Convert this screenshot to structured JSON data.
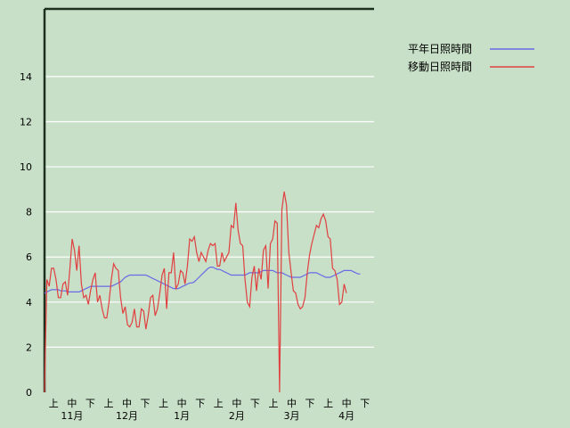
{
  "chart_data": {
    "type": "line",
    "ylim": [
      0,
      17
    ],
    "y_ticks": [
      0,
      2,
      4,
      6,
      8,
      10,
      12,
      14
    ],
    "grid": true,
    "legend_position": "right",
    "x_decade_labels": [
      "上",
      "中",
      "下",
      "上",
      "中",
      "下",
      "上",
      "中",
      "下",
      "上",
      "中",
      "下",
      "上",
      "中",
      "下",
      "上",
      "中",
      "下"
    ],
    "x_month_labels": [
      "11月",
      "12月",
      "1月",
      "2月",
      "3月",
      "4月"
    ],
    "series": [
      {
        "name": "平年日照時間",
        "color": "#6a6ae6",
        "start_index": 0,
        "values": [
          4.4,
          4.45,
          4.5,
          4.55,
          4.55,
          4.55,
          4.55,
          4.5,
          4.5,
          4.5,
          4.45,
          4.45,
          4.45,
          4.45,
          4.45,
          4.45,
          4.5,
          4.55,
          4.6,
          4.65,
          4.7,
          4.7,
          4.7,
          4.7,
          4.7,
          4.7,
          4.7,
          4.7,
          4.7,
          4.7,
          4.75,
          4.8,
          4.85,
          4.9,
          5.0,
          5.1,
          5.15,
          5.2,
          5.2,
          5.2,
          5.2,
          5.2,
          5.2,
          5.2,
          5.2,
          5.15,
          5.1,
          5.05,
          5.0,
          4.95,
          4.9,
          4.85,
          4.8,
          4.75,
          4.7,
          4.65,
          4.6,
          4.6,
          4.6,
          4.65,
          4.7,
          4.75,
          4.8,
          4.85,
          4.85,
          4.9,
          5.0,
          5.1,
          5.2,
          5.3,
          5.4,
          5.5,
          5.55,
          5.55,
          5.5,
          5.45,
          5.45,
          5.4,
          5.35,
          5.3,
          5.25,
          5.2,
          5.2,
          5.2,
          5.2,
          5.2,
          5.2,
          5.2,
          5.25,
          5.3,
          5.3,
          5.3,
          5.3,
          5.3,
          5.35,
          5.4,
          5.4,
          5.4,
          5.4,
          5.4,
          5.35,
          5.3,
          5.3,
          5.3,
          5.25,
          5.2,
          5.15,
          5.1,
          5.1,
          5.1,
          5.1,
          5.1,
          5.15,
          5.2,
          5.25,
          5.3,
          5.3,
          5.3,
          5.3,
          5.25,
          5.2,
          5.15,
          5.1,
          5.1,
          5.1,
          5.15,
          5.2,
          5.25,
          5.3,
          5.35,
          5.4,
          5.4,
          5.4,
          5.4,
          5.35,
          5.3,
          5.25,
          5.25
        ]
      },
      {
        "name": "移動日照時間",
        "color": "#e04040",
        "start_index": 0,
        "values": [
          0.0,
          5.0,
          4.7,
          5.5,
          5.5,
          5.0,
          4.2,
          4.2,
          4.8,
          4.9,
          4.3,
          5.5,
          6.8,
          6.3,
          5.4,
          6.5,
          4.8,
          4.2,
          4.3,
          3.9,
          4.5,
          5.0,
          5.3,
          4.0,
          4.3,
          3.7,
          3.3,
          3.3,
          4.0,
          5.0,
          5.7,
          5.5,
          5.4,
          4.2,
          3.5,
          3.8,
          3.0,
          2.9,
          3.1,
          3.7,
          2.9,
          2.9,
          3.7,
          3.6,
          2.8,
          3.4,
          4.2,
          4.3,
          3.4,
          3.7,
          4.4,
          5.2,
          5.5,
          3.7,
          5.3,
          5.3,
          6.2,
          4.6,
          4.8,
          5.4,
          5.3,
          4.8,
          5.6,
          6.8,
          6.7,
          6.9,
          6.2,
          5.8,
          6.2,
          6.0,
          5.8,
          6.3,
          6.6,
          6.5,
          6.6,
          5.6,
          5.6,
          6.2,
          5.8,
          6.0,
          6.2,
          7.4,
          7.3,
          8.4,
          7.2,
          6.6,
          6.5,
          5.0,
          4.0,
          3.8,
          5.1,
          5.6,
          4.5,
          5.5,
          5.0,
          6.3,
          6.5,
          4.6,
          6.6,
          6.8,
          7.6,
          7.5,
          0.0,
          8.1,
          8.9,
          8.3,
          6.2,
          5.3,
          4.5,
          4.4,
          3.9,
          3.7,
          3.8,
          4.2,
          5.3,
          6.1,
          6.6,
          7.0,
          7.4,
          7.3,
          7.7,
          7.9,
          7.6,
          6.9,
          6.8,
          5.5,
          5.4,
          5.0,
          3.9,
          4.0,
          4.8,
          4.4
        ]
      }
    ]
  }
}
